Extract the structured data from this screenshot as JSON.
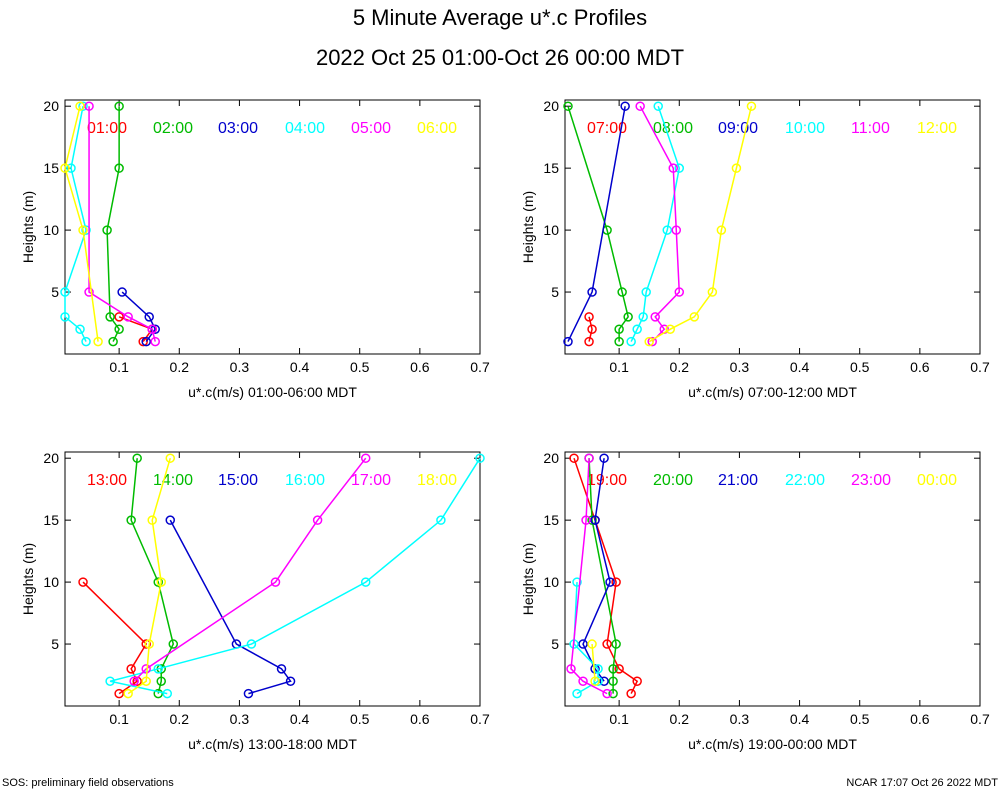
{
  "title": "5 Minute Average u*.c Profiles",
  "subtitle": "2022 Oct 25 01:00-Oct 26 00:00 MDT",
  "footer": {
    "left": "SOS: preliminary field observations",
    "right": "NCAR 17:07 Oct 26 2022 MDT"
  },
  "colors": [
    "#ff0000",
    "#00bb00",
    "#0000cc",
    "#00ffff",
    "#ff00ff",
    "#ffff00"
  ],
  "chart_data": [
    {
      "type": "line",
      "xlabel": "u*.c(m/s) 01:00-06:00 MDT",
      "ylabel": "Heights (m)",
      "xlim": [
        0.01,
        0.7
      ],
      "ylim": [
        0,
        20.5
      ],
      "xticks": [
        "0.1",
        "0.2",
        "0.3",
        "0.4",
        "0.5",
        "0.6",
        "0.7"
      ],
      "yticks": [
        "5",
        "10",
        "15",
        "20"
      ],
      "series": [
        {
          "name": "01:00",
          "points": [
            [
              0.14,
              1
            ],
            [
              0.155,
              2
            ],
            [
              0.1,
              3
            ]
          ]
        },
        {
          "name": "02:00",
          "points": [
            [
              0.09,
              1
            ],
            [
              0.1,
              2
            ],
            [
              0.085,
              3
            ],
            [
              0.08,
              10
            ],
            [
              0.1,
              15
            ],
            [
              0.1,
              20
            ]
          ]
        },
        {
          "name": "03:00",
          "points": [
            [
              0.145,
              1
            ],
            [
              0.16,
              2
            ],
            [
              0.15,
              3
            ],
            [
              0.105,
              5
            ]
          ]
        },
        {
          "name": "04:00",
          "points": [
            [
              0.045,
              1
            ],
            [
              0.035,
              2
            ],
            [
              0.01,
              3
            ],
            [
              0.01,
              5
            ],
            [
              0.045,
              10
            ],
            [
              0.02,
              15
            ],
            [
              0.04,
              20
            ]
          ]
        },
        {
          "name": "05:00",
          "points": [
            [
              0.16,
              1
            ],
            [
              0.155,
              2
            ],
            [
              0.115,
              3
            ],
            [
              0.05,
              5
            ],
            [
              0.05,
              20
            ]
          ]
        },
        {
          "name": "06:00",
          "points": [
            [
              0.065,
              1
            ],
            [
              0.04,
              10
            ],
            [
              0.01,
              15
            ],
            [
              0.035,
              20
            ]
          ]
        }
      ]
    },
    {
      "type": "line",
      "xlabel": "u*.c(m/s) 07:00-12:00 MDT",
      "ylabel": "Heights (m)",
      "xlim": [
        0.01,
        0.7
      ],
      "ylim": [
        0,
        20.5
      ],
      "xticks": [
        "0.1",
        "0.2",
        "0.3",
        "0.4",
        "0.5",
        "0.6",
        "0.7"
      ],
      "yticks": [
        "5",
        "10",
        "15",
        "20"
      ],
      "series": [
        {
          "name": "07:00",
          "points": [
            [
              0.05,
              1
            ],
            [
              0.055,
              2
            ],
            [
              0.05,
              3
            ]
          ]
        },
        {
          "name": "08:00",
          "points": [
            [
              0.1,
              1
            ],
            [
              0.1,
              2
            ],
            [
              0.115,
              3
            ],
            [
              0.105,
              5
            ],
            [
              0.08,
              10
            ],
            [
              0.015,
              20
            ]
          ]
        },
        {
          "name": "09:00",
          "points": [
            [
              0.015,
              1
            ],
            [
              0.055,
              5
            ],
            [
              0.11,
              20
            ]
          ]
        },
        {
          "name": "10:00",
          "points": [
            [
              0.12,
              1
            ],
            [
              0.13,
              2
            ],
            [
              0.14,
              3
            ],
            [
              0.145,
              5
            ],
            [
              0.18,
              10
            ],
            [
              0.2,
              15
            ],
            [
              0.165,
              20
            ]
          ]
        },
        {
          "name": "11:00",
          "points": [
            [
              0.155,
              1
            ],
            [
              0.175,
              2
            ],
            [
              0.16,
              3
            ],
            [
              0.2,
              5
            ],
            [
              0.195,
              10
            ],
            [
              0.19,
              15
            ],
            [
              0.135,
              20
            ]
          ]
        },
        {
          "name": "12:00",
          "points": [
            [
              0.15,
              1
            ],
            [
              0.185,
              2
            ],
            [
              0.225,
              3
            ],
            [
              0.255,
              5
            ],
            [
              0.27,
              10
            ],
            [
              0.295,
              15
            ],
            [
              0.32,
              20
            ]
          ]
        }
      ]
    },
    {
      "type": "line",
      "xlabel": "u*.c(m/s) 13:00-18:00 MDT",
      "ylabel": "Heights (m)",
      "xlim": [
        0.01,
        0.7
      ],
      "ylim": [
        0,
        20.5
      ],
      "xticks": [
        "0.1",
        "0.2",
        "0.3",
        "0.4",
        "0.5",
        "0.6",
        "0.7"
      ],
      "yticks": [
        "5",
        "10",
        "15",
        "20"
      ],
      "series": [
        {
          "name": "13:00",
          "points": [
            [
              0.1,
              1
            ],
            [
              0.13,
              2
            ],
            [
              0.12,
              3
            ],
            [
              0.145,
              5
            ],
            [
              0.04,
              10
            ]
          ]
        },
        {
          "name": "14:00",
          "points": [
            [
              0.165,
              1
            ],
            [
              0.17,
              2
            ],
            [
              0.17,
              3
            ],
            [
              0.19,
              5
            ],
            [
              0.165,
              10
            ],
            [
              0.12,
              15
            ],
            [
              0.13,
              20
            ]
          ]
        },
        {
          "name": "15:00",
          "points": [
            [
              0.315,
              1
            ],
            [
              0.385,
              2
            ],
            [
              0.37,
              3
            ],
            [
              0.295,
              5
            ],
            [
              0.185,
              15
            ]
          ]
        },
        {
          "name": "16:00",
          "points": [
            [
              0.18,
              1
            ],
            [
              0.085,
              2
            ],
            [
              0.165,
              3
            ],
            [
              0.32,
              5
            ],
            [
              0.51,
              10
            ],
            [
              0.635,
              15
            ],
            [
              0.7,
              20
            ]
          ]
        },
        {
          "name": "17:00",
          "points": [
            [
              0.125,
              2
            ],
            [
              0.145,
              3
            ],
            [
              0.36,
              10
            ],
            [
              0.43,
              15
            ],
            [
              0.51,
              20
            ]
          ]
        },
        {
          "name": "18:00",
          "points": [
            [
              0.115,
              1
            ],
            [
              0.145,
              2
            ],
            [
              0.15,
              5
            ],
            [
              0.17,
              10
            ],
            [
              0.155,
              15
            ],
            [
              0.185,
              20
            ]
          ]
        }
      ]
    },
    {
      "type": "line",
      "xlabel": "u*.c(m/s) 19:00-00:00 MDT",
      "ylabel": "Heights (m)",
      "xlim": [
        0.01,
        0.7
      ],
      "ylim": [
        0,
        20.5
      ],
      "xticks": [
        "0.1",
        "0.2",
        "0.3",
        "0.4",
        "0.5",
        "0.6",
        "0.7"
      ],
      "yticks": [
        "5",
        "10",
        "15",
        "20"
      ],
      "series": [
        {
          "name": "19:00",
          "points": [
            [
              0.12,
              1
            ],
            [
              0.13,
              2
            ],
            [
              0.1,
              3
            ],
            [
              0.08,
              5
            ],
            [
              0.095,
              10
            ],
            [
              0.06,
              15
            ],
            [
              0.025,
              20
            ]
          ]
        },
        {
          "name": "20:00",
          "points": [
            [
              0.09,
              1
            ],
            [
              0.09,
              2
            ],
            [
              0.09,
              3
            ],
            [
              0.095,
              5
            ],
            [
              0.055,
              15
            ],
            [
              0.05,
              20
            ]
          ]
        },
        {
          "name": "21:00",
          "points": [
            [
              0.075,
              2
            ],
            [
              0.06,
              3
            ],
            [
              0.04,
              5
            ],
            [
              0.085,
              10
            ],
            [
              0.06,
              15
            ],
            [
              0.075,
              20
            ]
          ]
        },
        {
          "name": "22:00",
          "points": [
            [
              0.03,
              1
            ],
            [
              0.065,
              2
            ],
            [
              0.065,
              3
            ],
            [
              0.025,
              5
            ],
            [
              0.03,
              10
            ]
          ]
        },
        {
          "name": "23:00",
          "points": [
            [
              0.08,
              1
            ],
            [
              0.04,
              2
            ],
            [
              0.02,
              3
            ],
            [
              0.045,
              15
            ],
            [
              0.05,
              20
            ]
          ]
        },
        {
          "name": "00:00",
          "points": [
            [
              0.06,
              2
            ],
            [
              0.055,
              5
            ]
          ]
        }
      ]
    }
  ]
}
